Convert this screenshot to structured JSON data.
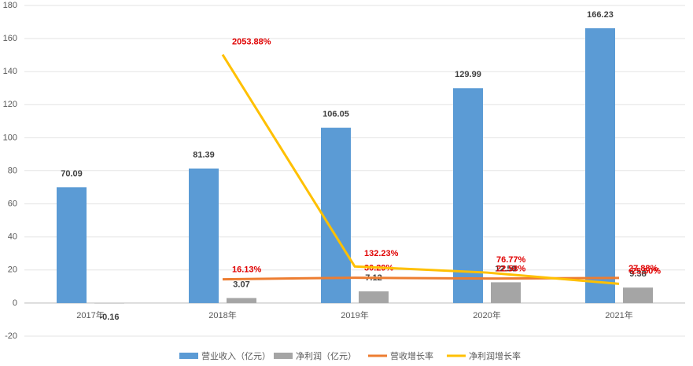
{
  "chart_data": {
    "type": "bar-line",
    "categories": [
      "2017年",
      "2018年",
      "2019年",
      "2020年",
      "2021年"
    ],
    "series": [
      {
        "name": "营业收入（亿元）",
        "type": "bar",
        "color": "#5b9bd5",
        "values": [
          70.09,
          81.39,
          106.05,
          129.99,
          166.23
        ]
      },
      {
        "name": "净利润（亿元）",
        "type": "bar",
        "color": "#a5a5a5",
        "values": [
          -0.16,
          3.07,
          7.12,
          12.59,
          9.38
        ]
      },
      {
        "name": "营收增长率",
        "type": "line",
        "axis": "y2",
        "color": "#ed7d31",
        "values": [
          null,
          16.13,
          30.29,
          22.58,
          27.88
        ],
        "value_labels": [
          null,
          "16.13%",
          "30.29%",
          "22.58%",
          "27.88%"
        ]
      },
      {
        "name": "净利润增长率",
        "type": "line",
        "axis": "y2",
        "color": "#ffc000",
        "values": [
          null,
          2053.88,
          132.23,
          76.77,
          -25.5
        ],
        "value_labels": [
          null,
          "2053.88%",
          "132.23%",
          "76.77%",
          "-25.50%"
        ]
      }
    ],
    "ylim": [
      -20,
      180
    ],
    "yticks": [
      -20,
      0,
      20,
      40,
      60,
      80,
      100,
      120,
      140,
      160,
      180
    ],
    "y2lim": [
      -500,
      2500
    ],
    "grid": true,
    "legend": "bottom"
  }
}
